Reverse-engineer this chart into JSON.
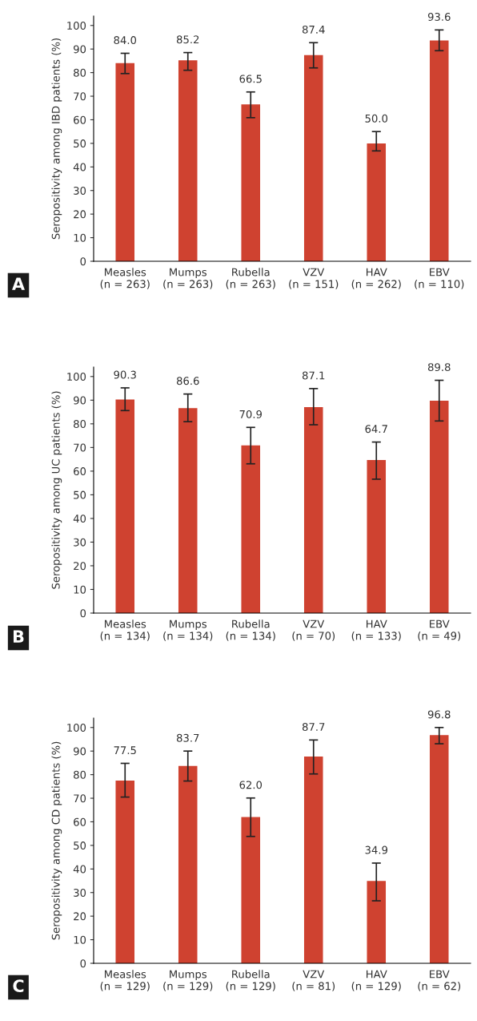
{
  "chart_data": [
    {
      "type": "bar",
      "ylabel": "Seropositivity among IBD patients (%)",
      "categories": [
        "Measles\n(n = 263)",
        "Mumps\n(n = 263)",
        "Rubella\n(n = 263)",
        "VZV\n(n = 151)",
        "HAV\n(n = 262)",
        "EBV\n(n = 110)"
      ],
      "values": [
        84.0,
        85.2,
        66.5,
        87.4,
        50.0,
        93.6
      ],
      "errors": [
        [
          79.6,
          88.2
        ],
        [
          81.0,
          88.5
        ],
        [
          60.9,
          71.8
        ],
        [
          82.0,
          92.7
        ],
        [
          46.8,
          55.0
        ],
        [
          89.3,
          98.1
        ]
      ],
      "color": "#cf4230",
      "value_labels": [
        "84.0",
        "85.2",
        "66.5",
        "87.4",
        "50.0",
        "93.6"
      ],
      "ylim": [
        0,
        104
      ],
      "yticks": [
        0,
        10,
        20,
        30,
        40,
        50,
        60,
        70,
        80,
        90,
        100
      ],
      "grid": false,
      "annotations": [
        "A"
      ]
    },
    {
      "type": "bar",
      "ylabel": "Seropositivity among UC patients (%)",
      "categories": [
        "Measles\n(n = 134)",
        "Mumps\n(n = 134)",
        "Rubella\n(n = 134)",
        "VZV\n(n = 70)",
        "HAV\n(n = 133)",
        "EBV\n(n = 49)"
      ],
      "values": [
        90.3,
        86.6,
        70.9,
        87.1,
        64.7,
        89.8
      ],
      "errors": [
        [
          85.6,
          95.2
        ],
        [
          80.9,
          92.6
        ],
        [
          63.1,
          78.5
        ],
        [
          79.6,
          94.9
        ],
        [
          56.6,
          72.3
        ],
        [
          81.2,
          98.4
        ]
      ],
      "color": "#cf4230",
      "value_labels": [
        "90.3",
        "86.6",
        "70.9",
        "87.1",
        "64.7",
        "89.8"
      ],
      "ylim": [
        0,
        104
      ],
      "yticks": [
        0,
        10,
        20,
        30,
        40,
        50,
        60,
        70,
        80,
        90,
        100
      ],
      "grid": false,
      "annotations": [
        "B"
      ]
    },
    {
      "type": "bar",
      "ylabel": "Seropositivity among CD patients (%)",
      "categories": [
        "Measles\n(n = 129)",
        "Mumps\n(n = 129)",
        "Rubella\n(n = 129)",
        "VZV\n(n = 81)",
        "HAV\n(n = 129)",
        "EBV\n(n = 62)"
      ],
      "values": [
        77.5,
        83.7,
        62.0,
        87.7,
        34.9,
        96.8
      ],
      "errors": [
        [
          70.5,
          84.8
        ],
        [
          77.3,
          90.0
        ],
        [
          53.8,
          70.1
        ],
        [
          80.3,
          94.7
        ],
        [
          26.5,
          42.5
        ],
        [
          93.1,
          100.0
        ]
      ],
      "color": "#cf4230",
      "value_labels": [
        "77.5",
        "83.7",
        "62.0",
        "87.7",
        "34.9",
        "96.8"
      ],
      "ylim": [
        0,
        104
      ],
      "yticks": [
        0,
        10,
        20,
        30,
        40,
        50,
        60,
        70,
        80,
        90,
        100
      ],
      "grid": false,
      "annotations": [
        "C"
      ]
    }
  ]
}
